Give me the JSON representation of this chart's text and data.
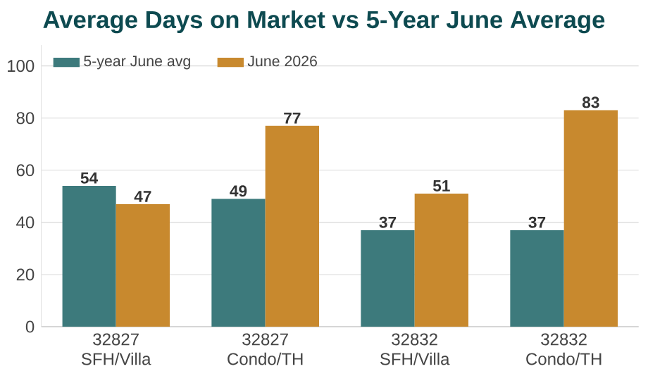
{
  "chart_data": {
    "type": "bar",
    "title": "Average Days on Market vs 5-Year June Average",
    "categories": [
      "32827 SFH/Villa",
      "32827 Condo/TH",
      "32832 SFH/Villa",
      "32832 Condo/TH"
    ],
    "series": [
      {
        "name": "5-year June avg",
        "color": "#3d7a7c",
        "values": [
          54,
          49,
          37,
          37
        ]
      },
      {
        "name": "June 2026",
        "color": "#c8892e",
        "values": [
          47,
          77,
          51,
          83
        ]
      }
    ],
    "ylim": [
      0,
      108
    ],
    "yticks": [
      0,
      20,
      40,
      60,
      80,
      100
    ],
    "grid": "y",
    "legend": "top left",
    "data_labels": true
  }
}
